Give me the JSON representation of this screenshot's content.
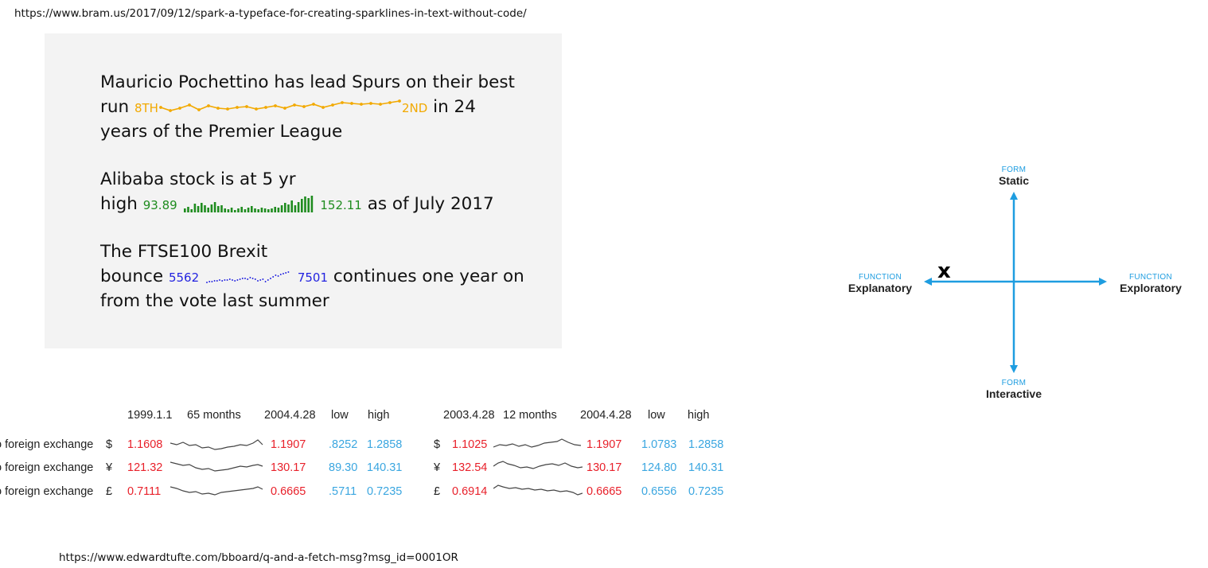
{
  "url_top": "https://www.bram.us/2017/09/12/spark-a-typeface-for-creating-sparklines-in-text-without-code/",
  "url_bottom": "https://www.edwardtufte.com/bboard/q-and-a-fetch-msg?msg_id=0001OR",
  "spark_examples": {
    "spurs": {
      "line1": "Mauricio Pochettino has lead Spurs on their best",
      "run_word": "run",
      "start_value": "8TH",
      "end_value": "2ND",
      "after": "in 24",
      "line3": "years of the Premier League",
      "color": "#f2a900"
    },
    "alibaba": {
      "line1": "Alibaba stock is at 5 yr",
      "high_word": "high",
      "start_value": "93.89",
      "end_value": "152.11",
      "after": "as of July 2017",
      "color": "#1f8c1f"
    },
    "ftse": {
      "line1": "The FTSE100 Brexit",
      "bounce_word": "bounce",
      "start_value": "5562",
      "end_value": "7501",
      "after": "continues one year on",
      "line3": "from the vote last summer",
      "color": "#2323e0"
    }
  },
  "diagram": {
    "top": {
      "kind": "FORM",
      "name": "Static"
    },
    "bottom": {
      "kind": "FORM",
      "name": "Interactive"
    },
    "left": {
      "kind": "FUNCTION",
      "name": "Explanatory"
    },
    "right": {
      "kind": "FUNCTION",
      "name": "Exploratory"
    },
    "marker": "x",
    "axis_color": "#1e9de0"
  },
  "fx_table": {
    "headers_left": {
      "start": "1999.1.1",
      "span": "65 months",
      "end": "2004.4.28",
      "low": "low",
      "high": "high"
    },
    "headers_right": {
      "start": "2003.4.28",
      "span": "12 months",
      "end": "2004.4.28",
      "low": "low",
      "high": "high"
    },
    "rows": [
      {
        "label": "o foreign exchange",
        "symbol": "$",
        "l_start": "1.1608",
        "l_end": "1.1907",
        "l_low": ".8252",
        "l_high": "1.2858",
        "r_symbol": "$",
        "r_start": "1.1025",
        "r_end": "1.1907",
        "r_low": "1.0783",
        "r_high": "1.2858"
      },
      {
        "label": "o foreign exchange",
        "symbol": "¥",
        "l_start": "121.32",
        "l_end": "130.17",
        "l_low": "89.30",
        "l_high": "140.31",
        "r_symbol": "¥",
        "r_start": "132.54",
        "r_end": "130.17",
        "r_low": "124.80",
        "r_high": "140.31"
      },
      {
        "label": "o foreign exchange",
        "symbol": "£",
        "l_start": "0.7111",
        "l_end": "0.6665",
        "l_low": ".5711",
        "l_high": "0.7235",
        "r_symbol": "£",
        "r_start": "0.6914",
        "r_end": "0.6665",
        "r_low": "0.6556",
        "r_high": "0.7235"
      }
    ],
    "value_color": "#e8202a",
    "range_color": "#3aa6e0"
  }
}
